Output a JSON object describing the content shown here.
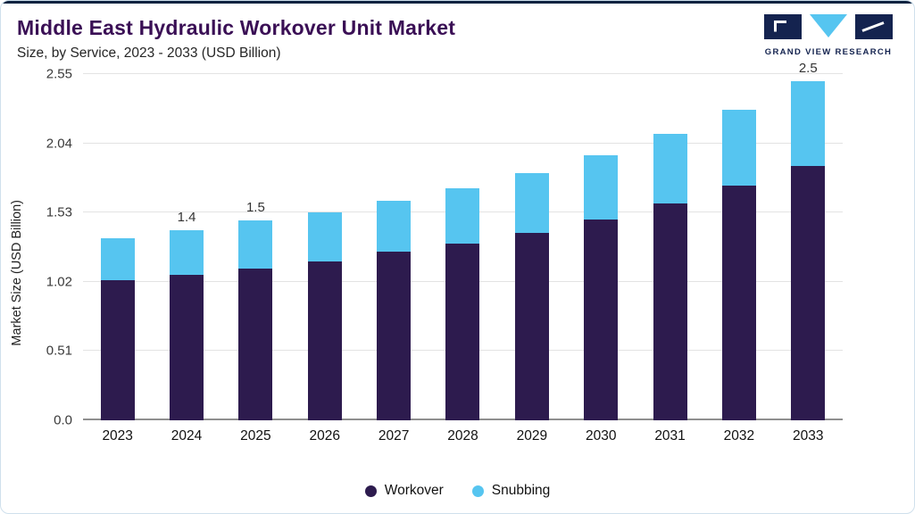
{
  "header": {
    "title": "Middle East Hydraulic Workover Unit Market",
    "subtitle": "Size, by Service, 2023 - 2033 (USD Billion)",
    "logo_text": "GRAND VIEW RESEARCH"
  },
  "colors": {
    "workover_bar": "#2d1b4e",
    "snubbing_bar": "#56c5f0",
    "title_text": "#3a0f55",
    "logo_navy": "#14234f",
    "top_bar": "#0c2340",
    "gridline": "#e3e3e3",
    "baseline": "#8f8f8f"
  },
  "chart_data": {
    "type": "bar",
    "stacked": true,
    "title": "Middle East Hydraulic Workover Unit Market Size, by Service, 2023 - 2033 (USD Billion)",
    "xlabel": "",
    "ylabel": "Market Size (USD Billion)",
    "ylim": [
      0,
      2.55
    ],
    "ytick_values": [
      0,
      0.51,
      1.02,
      1.53,
      2.04,
      2.55
    ],
    "ytick_labels": [
      "0.0",
      "0.51",
      "1.02",
      "1.53",
      "2.04",
      "2.55"
    ],
    "categories": [
      "2023",
      "2024",
      "2025",
      "2026",
      "2027",
      "2028",
      "2029",
      "2030",
      "2031",
      "2032",
      "2033"
    ],
    "series": [
      {
        "name": "Workover",
        "color": "#2d1b4e",
        "values": [
          1.03,
          1.07,
          1.12,
          1.17,
          1.24,
          1.3,
          1.38,
          1.48,
          1.6,
          1.73,
          1.87
        ]
      },
      {
        "name": "Snubbing",
        "color": "#56c5f0",
        "values": [
          0.31,
          0.33,
          0.35,
          0.36,
          0.38,
          0.41,
          0.44,
          0.47,
          0.51,
          0.56,
          0.63
        ]
      }
    ],
    "totals": [
      1.34,
      1.4,
      1.47,
      1.53,
      1.62,
      1.71,
      1.82,
      1.95,
      2.11,
      2.29,
      2.5
    ],
    "bar_value_labels": {
      "2024": "1.4",
      "2025": "1.5",
      "2033": "2.5"
    },
    "grid": true,
    "legend_position": "bottom"
  }
}
